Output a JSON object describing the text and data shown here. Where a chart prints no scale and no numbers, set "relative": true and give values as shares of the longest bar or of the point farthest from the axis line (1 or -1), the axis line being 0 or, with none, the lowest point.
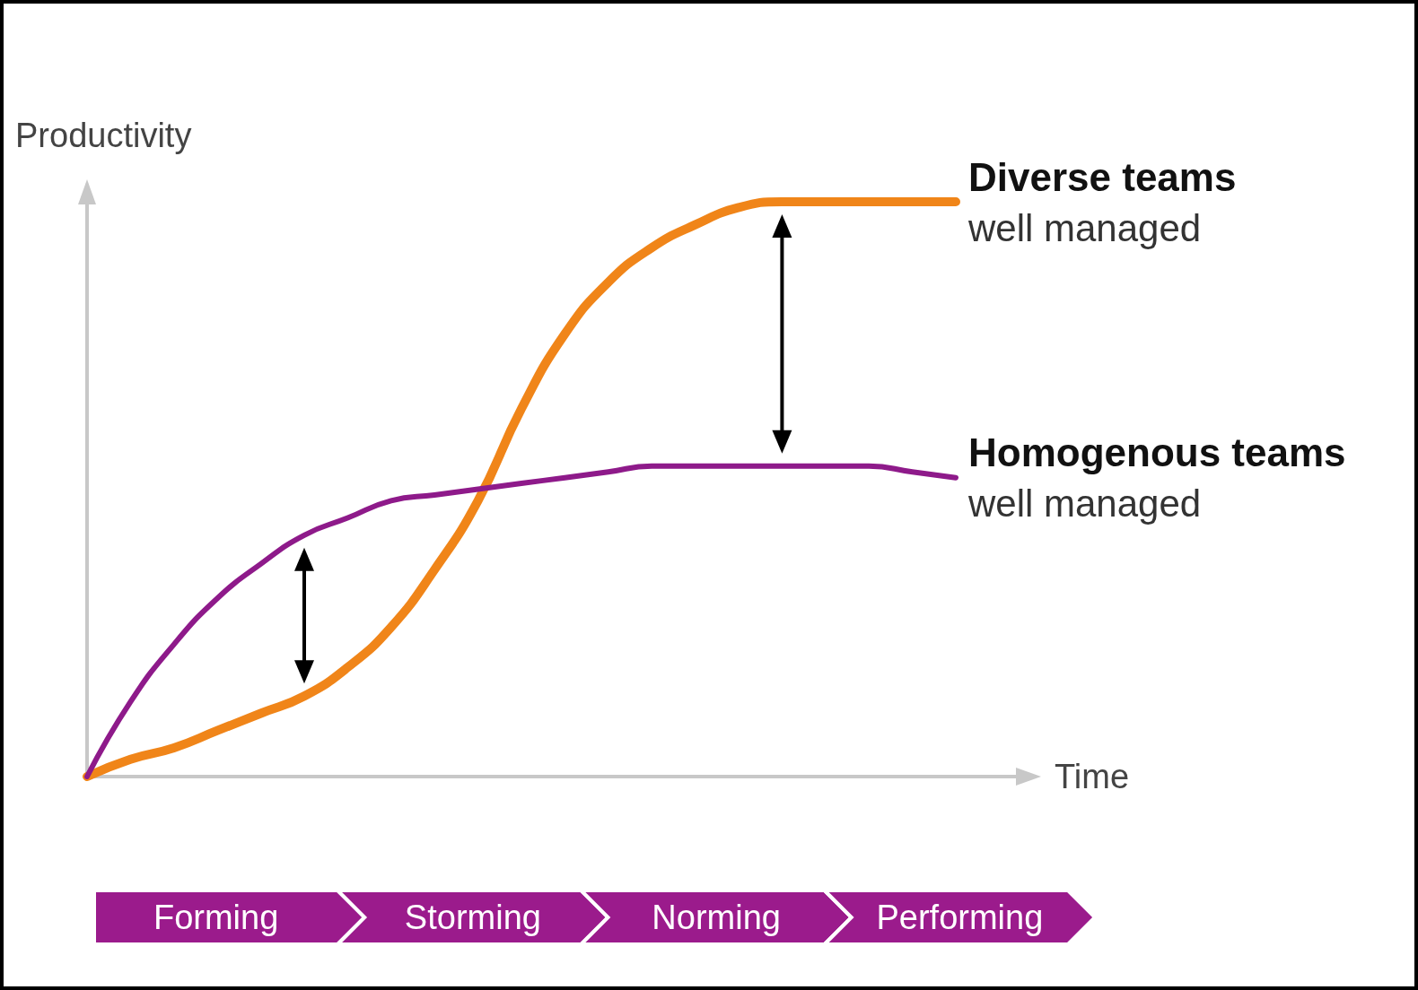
{
  "chart_data": {
    "type": "line",
    "relative": true,
    "xlabel": "Time",
    "ylabel": "Productivity",
    "marker": "none",
    "legend": false,
    "grid": false,
    "categories": [
      null,
      null,
      null,
      null,
      null,
      null,
      null,
      null,
      null,
      null,
      null,
      null,
      null,
      null,
      null,
      null,
      null,
      null,
      null,
      null,
      null
    ],
    "series": [
      {
        "name": "Diverse teams",
        "color": "#f08519",
        "values": [
          0,
          0.03,
          0.05,
          0.08,
          0.11,
          0.14,
          0.19,
          0.26,
          0.36,
          0.48,
          0.64,
          0.77,
          0.86,
          0.92,
          0.96,
          0.99,
          1,
          1,
          1,
          1,
          1
        ]
      },
      {
        "name": "Homogenous teams",
        "color": "#8e1a8a",
        "values": [
          0,
          0.13,
          0.23,
          0.31,
          0.37,
          0.42,
          0.45,
          0.48,
          0.49,
          0.5,
          0.51,
          0.52,
          0.53,
          0.54,
          0.54,
          0.54,
          0.54,
          0.54,
          0.54,
          0.53,
          0.52
        ]
      }
    ],
    "annotations": [
      "well managed",
      "well managed",
      "Forming",
      "Storming",
      "Norming",
      "Performing"
    ]
  }
}
